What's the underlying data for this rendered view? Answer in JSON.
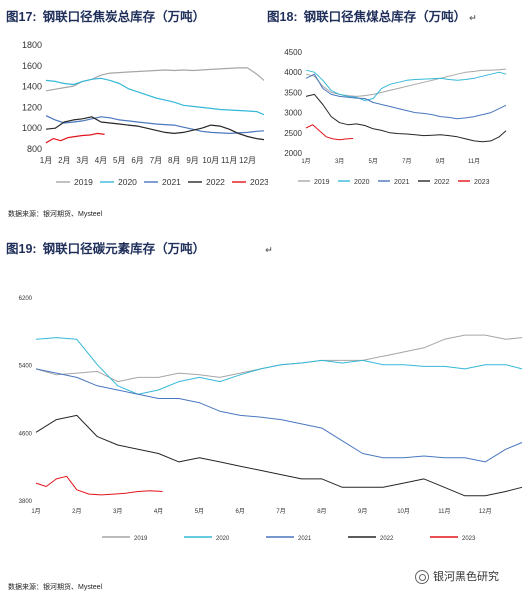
{
  "figures": {
    "fig17": {
      "prefix": "图17:",
      "title": "钢联口径焦炭总库存（万吨）"
    },
    "fig18": {
      "prefix": "图18:",
      "title": "钢联口径焦煤总库存（万吨）",
      "mark": "↵"
    },
    "fig19": {
      "prefix": "图19:",
      "title": "钢联口径碳元素库存（万吨）",
      "mark": "↵"
    }
  },
  "source_top": "数据来源：银河期货、Mysteel",
  "source_bottom": "数据来源：银河期货、Mysteel",
  "watermark": "银河黑色研究",
  "colors": {
    "2019": "#a6a6a6",
    "2020": "#35b8d8",
    "2021": "#4a77be",
    "2022": "#262626",
    "2023": "#e3141b"
  },
  "chart_data": [
    {
      "type": "line",
      "title": "钢联口径焦炭总库存（万吨）",
      "x_labels": [
        "1月",
        "2月",
        "3月",
        "4月",
        "5月",
        "6月",
        "7月",
        "8月",
        "9月",
        "10月",
        "11月",
        "12月"
      ],
      "ylim": [
        800,
        1800
      ],
      "y_ticks": [
        "800",
        "1000",
        "1200",
        "1400",
        "1600",
        "1800"
      ],
      "legend": [
        "2019",
        "2020",
        "2021",
        "2022",
        "2023"
      ],
      "series": [
        {
          "name": "2019",
          "x": [
            0,
            0.5,
            1,
            1.5,
            2,
            2.5,
            3,
            3.5,
            4,
            4.5,
            5,
            5.5,
            6,
            6.5,
            7,
            7.5,
            8,
            8.5,
            9,
            9.5,
            10,
            10.5,
            11,
            11.5,
            11.9
          ],
          "values": [
            1360,
            1375,
            1390,
            1405,
            1450,
            1470,
            1510,
            1530,
            1535,
            1540,
            1545,
            1550,
            1555,
            1560,
            1555,
            1560,
            1555,
            1560,
            1565,
            1570,
            1575,
            1580,
            1580,
            1520,
            1460
          ]
        },
        {
          "name": "2020",
          "x": [
            0,
            0.5,
            1,
            1.5,
            2,
            2.5,
            3,
            3.5,
            4,
            4.5,
            5,
            5.5,
            6,
            6.5,
            7,
            7.5,
            8,
            8.5,
            9,
            9.5,
            10,
            10.5,
            11,
            11.5,
            11.9
          ],
          "values": [
            1460,
            1450,
            1430,
            1420,
            1450,
            1470,
            1480,
            1460,
            1430,
            1380,
            1350,
            1320,
            1290,
            1270,
            1250,
            1220,
            1210,
            1200,
            1190,
            1180,
            1175,
            1170,
            1165,
            1160,
            1130
          ]
        },
        {
          "name": "2021",
          "x": [
            0,
            0.5,
            1,
            1.5,
            2,
            2.5,
            3,
            3.5,
            4,
            4.5,
            5,
            5.5,
            6,
            6.5,
            7,
            7.5,
            8,
            8.5,
            9,
            9.5,
            10,
            10.5,
            11,
            11.5,
            11.9
          ],
          "values": [
            1120,
            1080,
            1050,
            1060,
            1070,
            1090,
            1110,
            1100,
            1080,
            1070,
            1060,
            1050,
            1040,
            1035,
            1030,
            1010,
            990,
            970,
            960,
            955,
            950,
            955,
            960,
            970,
            975
          ]
        },
        {
          "name": "2022",
          "x": [
            0,
            0.5,
            1,
            1.5,
            2,
            2.5,
            3,
            3.5,
            4,
            4.5,
            5,
            5.5,
            6,
            6.5,
            7,
            7.5,
            8,
            8.5,
            9,
            9.5,
            10,
            10.5,
            11,
            11.5,
            11.9
          ],
          "values": [
            990,
            1000,
            1060,
            1080,
            1090,
            1110,
            1060,
            1050,
            1040,
            1030,
            1020,
            1000,
            980,
            960,
            950,
            960,
            980,
            1000,
            1030,
            1020,
            990,
            950,
            920,
            900,
            890
          ]
        },
        {
          "name": "2023",
          "x": [
            0,
            0.4,
            0.8,
            1.2,
            1.6,
            2,
            2.4,
            2.8,
            3.2
          ],
          "values": [
            860,
            900,
            880,
            910,
            920,
            930,
            935,
            950,
            940
          ]
        }
      ]
    },
    {
      "type": "line",
      "title": "钢联口径焦煤总库存（万吨）",
      "x_labels": [
        "1月",
        "3月",
        "5月",
        "7月",
        "9月",
        "11月"
      ],
      "ylim": [
        2000,
        4500
      ],
      "y_ticks": [
        "2000",
        "2500",
        "3000",
        "3500",
        "4000",
        "4500"
      ],
      "legend": [
        "2019",
        "2020",
        "2021",
        "2022",
        "2023"
      ],
      "series": [
        {
          "name": "2019",
          "x": [
            0,
            0.5,
            1,
            1.5,
            2,
            2.5,
            3,
            3.5,
            4,
            4.5,
            5,
            5.5,
            6,
            6.5,
            7,
            7.5,
            8,
            8.5,
            9,
            9.5,
            10,
            10.5,
            11,
            11.5,
            11.9
          ],
          "values": [
            3950,
            3900,
            3650,
            3500,
            3450,
            3420,
            3400,
            3420,
            3450,
            3500,
            3550,
            3600,
            3650,
            3700,
            3750,
            3800,
            3850,
            3900,
            3950,
            4000,
            4020,
            4050,
            4050,
            4060,
            4080
          ]
        },
        {
          "name": "2020",
          "x": [
            0,
            0.5,
            1,
            1.5,
            2,
            2.5,
            3,
            3.5,
            4,
            4.5,
            5,
            5.5,
            6,
            6.5,
            7,
            7.5,
            8,
            8.5,
            9,
            9.5,
            10,
            10.5,
            11,
            11.5,
            11.9
          ],
          "values": [
            4050,
            4000,
            3800,
            3550,
            3450,
            3400,
            3380,
            3300,
            3350,
            3600,
            3700,
            3750,
            3800,
            3820,
            3830,
            3840,
            3850,
            3820,
            3800,
            3820,
            3850,
            3900,
            3950,
            4000,
            3950
          ]
        },
        {
          "name": "2021",
          "x": [
            0,
            0.5,
            1,
            1.5,
            2,
            2.5,
            3,
            3.5,
            4,
            4.5,
            5,
            5.5,
            6,
            6.5,
            7,
            7.5,
            8,
            8.5,
            9,
            9.5,
            10,
            10.5,
            11,
            11.5,
            11.9
          ],
          "values": [
            3850,
            3950,
            3600,
            3450,
            3400,
            3380,
            3360,
            3350,
            3250,
            3200,
            3150,
            3100,
            3050,
            3000,
            2980,
            2950,
            2900,
            2880,
            2850,
            2870,
            2900,
            2950,
            3000,
            3100,
            3180
          ]
        },
        {
          "name": "2022",
          "x": [
            0,
            0.5,
            1,
            1.5,
            2,
            2.5,
            3,
            3.5,
            4,
            4.5,
            5,
            5.5,
            6,
            6.5,
            7,
            7.5,
            8,
            8.5,
            9,
            9.5,
            10,
            10.5,
            11,
            11.5,
            11.9
          ],
          "values": [
            3400,
            3450,
            3200,
            2900,
            2750,
            2700,
            2720,
            2680,
            2600,
            2560,
            2500,
            2480,
            2470,
            2450,
            2430,
            2440,
            2450,
            2430,
            2400,
            2350,
            2300,
            2280,
            2300,
            2400,
            2550
          ]
        },
        {
          "name": "2023",
          "x": [
            0,
            0.4,
            0.8,
            1.2,
            1.6,
            2,
            2.4,
            2.8
          ],
          "values": [
            2620,
            2700,
            2550,
            2400,
            2350,
            2330,
            2350,
            2360
          ]
        }
      ]
    },
    {
      "type": "line",
      "title": "钢联口径碳元素库存（万吨）",
      "x_labels": [
        "1月",
        "2月",
        "3月",
        "4月",
        "5月",
        "6月",
        "7月",
        "8月",
        "9月",
        "10月",
        "11月",
        "12月"
      ],
      "ylim": [
        3800,
        6200
      ],
      "y_ticks": [
        "3800",
        "4600",
        "5400",
        "6200"
      ],
      "legend": [
        "2019",
        "2020",
        "2021",
        "2022",
        "2023"
      ],
      "series": [
        {
          "name": "2019",
          "x": [
            0,
            0.5,
            1,
            1.5,
            2,
            2.5,
            3,
            3.5,
            4,
            4.5,
            5,
            5.5,
            6,
            6.5,
            7,
            7.5,
            8,
            8.5,
            9,
            9.5,
            10,
            10.5,
            11,
            11.5,
            11.9
          ],
          "values": [
            5350,
            5280,
            5300,
            5320,
            5200,
            5250,
            5250,
            5300,
            5280,
            5250,
            5300,
            5350,
            5400,
            5420,
            5450,
            5450,
            5450,
            5500,
            5550,
            5600,
            5700,
            5750,
            5750,
            5700,
            5720
          ]
        },
        {
          "name": "2020",
          "x": [
            0,
            0.5,
            1,
            1.5,
            2,
            2.5,
            3,
            3.5,
            4,
            4.5,
            5,
            5.5,
            6,
            6.5,
            7,
            7.5,
            8,
            8.5,
            9,
            9.5,
            10,
            10.5,
            11,
            11.5,
            11.9
          ],
          "values": [
            5700,
            5720,
            5700,
            5400,
            5150,
            5050,
            5100,
            5200,
            5250,
            5200,
            5280,
            5350,
            5400,
            5420,
            5450,
            5420,
            5450,
            5400,
            5400,
            5380,
            5380,
            5350,
            5400,
            5400,
            5350
          ]
        },
        {
          "name": "2021",
          "x": [
            0,
            0.5,
            1,
            1.5,
            2,
            2.5,
            3,
            3.5,
            4,
            4.5,
            5,
            5.5,
            6,
            6.5,
            7,
            7.5,
            8,
            8.5,
            9,
            9.5,
            10,
            10.5,
            11,
            11.5,
            11.9
          ],
          "values": [
            5350,
            5300,
            5250,
            5150,
            5100,
            5050,
            5000,
            5000,
            4950,
            4850,
            4800,
            4780,
            4750,
            4700,
            4650,
            4500,
            4350,
            4300,
            4300,
            4320,
            4300,
            4300,
            4250,
            4400,
            4480
          ]
        },
        {
          "name": "2022",
          "x": [
            0,
            0.5,
            1,
            1.5,
            2,
            2.5,
            3,
            3.5,
            4,
            4.5,
            5,
            5.5,
            6,
            6.5,
            7,
            7.5,
            8,
            8.5,
            9,
            9.5,
            10,
            10.5,
            11,
            11.5,
            11.9
          ],
          "values": [
            4600,
            4750,
            4800,
            4550,
            4450,
            4400,
            4350,
            4250,
            4300,
            4250,
            4200,
            4150,
            4100,
            4050,
            4050,
            3950,
            3950,
            3950,
            4000,
            4050,
            3950,
            3850,
            3850,
            3900,
            3950
          ]
        },
        {
          "name": "2023",
          "x": [
            0,
            0.25,
            0.5,
            0.75,
            1,
            1.3,
            1.6,
            1.9,
            2.2,
            2.5,
            2.8,
            3.1
          ],
          "values": [
            4000,
            3960,
            4050,
            4080,
            3920,
            3870,
            3860,
            3870,
            3880,
            3900,
            3910,
            3900
          ]
        }
      ]
    }
  ]
}
